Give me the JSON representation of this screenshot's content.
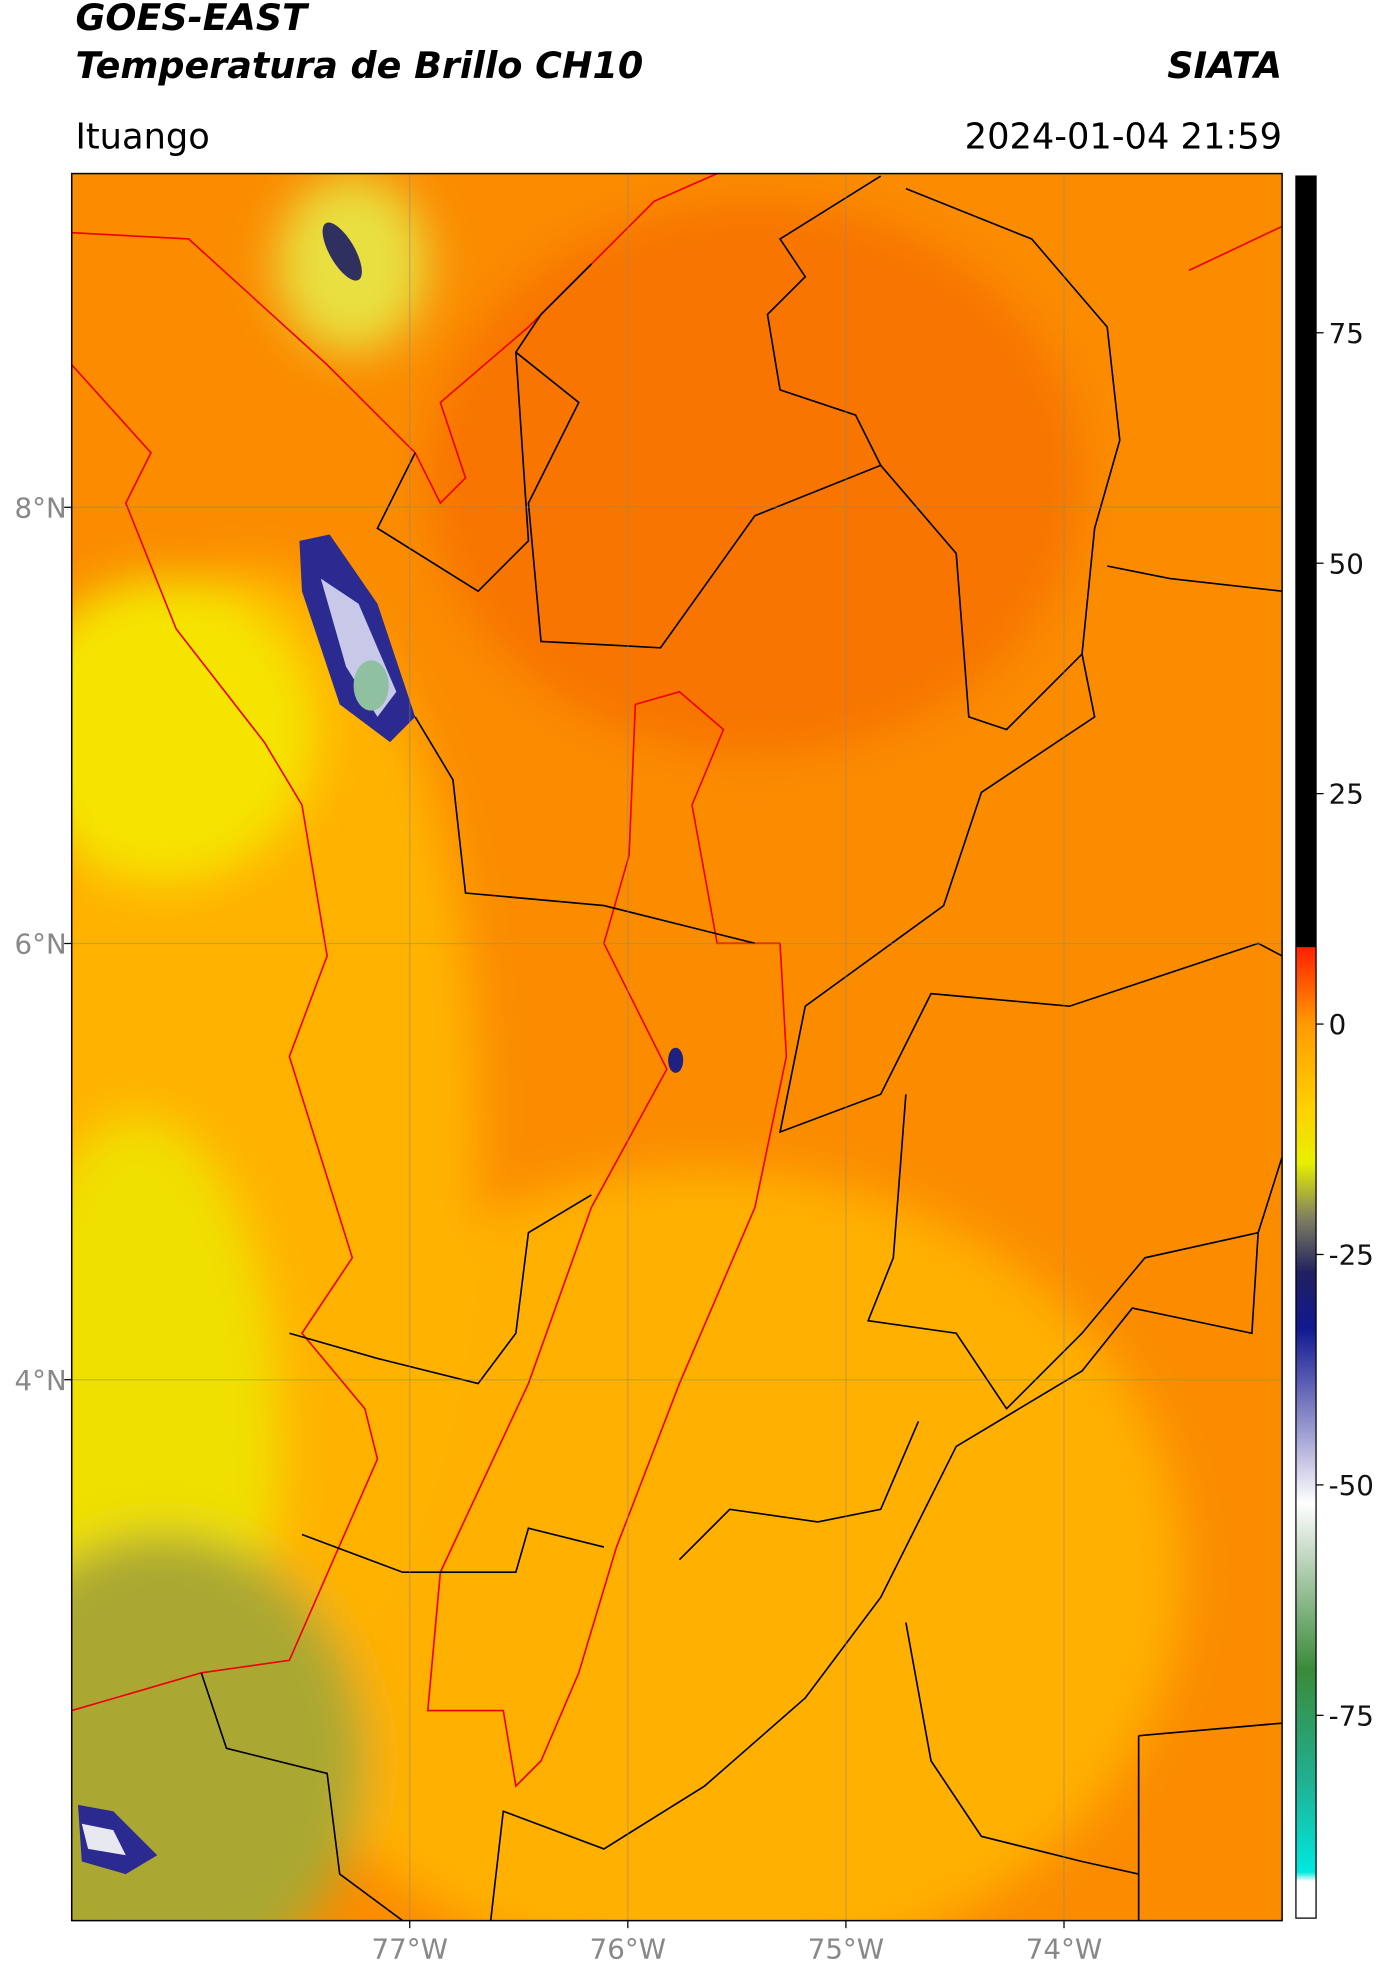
{
  "header": {
    "title_line1": "GOES-EAST",
    "title_line2": "Temperatura de Brillo CH10",
    "brand": "SIATA",
    "location": "Ituango",
    "datetime": "2024-01-04 21:59"
  },
  "map": {
    "latlim": [
      1.52,
      9.53
    ],
    "lonlim": [
      -78.55,
      -73.0
    ],
    "lat_ticks": [
      {
        "value": 8,
        "label": "8°N"
      },
      {
        "value": 6,
        "label": "6°N"
      },
      {
        "value": 4,
        "label": "4°N"
      }
    ],
    "lon_ticks": [
      {
        "value": -77,
        "label": "77°W"
      },
      {
        "value": -76,
        "label": "76°W"
      },
      {
        "value": -75,
        "label": "75°W"
      },
      {
        "value": -74,
        "label": "74°W"
      }
    ],
    "grid": true
  },
  "colorbar": {
    "lim": [
      -97,
      92
    ],
    "ticks": [
      75,
      50,
      25,
      0,
      -25,
      -50,
      -75
    ],
    "colormap": [
      [
        -97,
        "#ffffff"
      ],
      [
        -93,
        "#ffffff"
      ],
      [
        -92,
        "#00e8e0"
      ],
      [
        -82,
        "#20b090"
      ],
      [
        -70,
        "#3a8a3a"
      ],
      [
        -60,
        "#a8c8a8"
      ],
      [
        -52,
        "#ffffff"
      ],
      [
        -44,
        "#9a9ad0"
      ],
      [
        -33,
        "#101890"
      ],
      [
        -27,
        "#202060"
      ],
      [
        -21,
        "#808060"
      ],
      [
        -15,
        "#e8f000"
      ],
      [
        -9,
        "#ffd000"
      ],
      [
        0,
        "#ff9a00"
      ],
      [
        8.3,
        "#ff2000"
      ],
      [
        8.4,
        "#000000"
      ],
      [
        92,
        "#000000"
      ]
    ]
  }
}
